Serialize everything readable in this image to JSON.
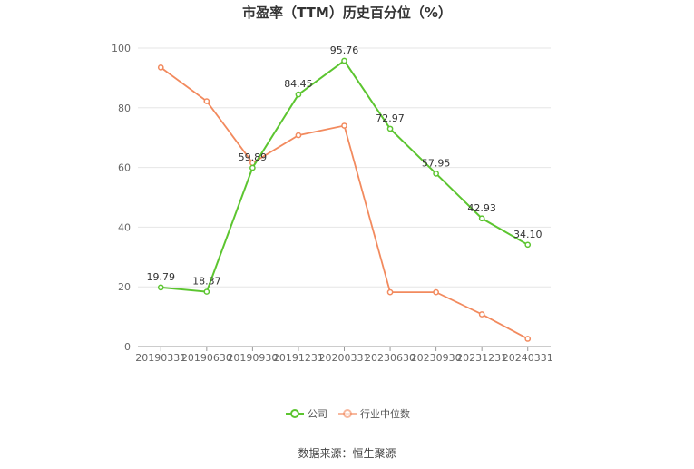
{
  "title": "市盈率（TTM）历史百分位（%）",
  "source": "数据来源：恒生聚源",
  "colors": {
    "company": "#5cc530",
    "industry": "#f28a5e",
    "grid": "#e6e6e6",
    "axis": "#999999"
  },
  "chart_data": {
    "type": "line",
    "categories": [
      "20190331",
      "20190630",
      "20190930",
      "20191231",
      "20200331",
      "20230630",
      "20230930",
      "20231231",
      "20240331"
    ],
    "ylim": [
      0,
      100
    ],
    "yticks": [
      0,
      20,
      40,
      60,
      80,
      100
    ],
    "grid": true,
    "legend": "bottom",
    "series": [
      {
        "name": "公司",
        "values": [
          19.79,
          18.37,
          59.89,
          84.45,
          95.76,
          72.97,
          57.95,
          42.93,
          34.1
        ],
        "labels": [
          "19.79",
          "18.37",
          "59.89",
          "84.45",
          "95.76",
          "72.97",
          "57.95",
          "42.93",
          "34.10"
        ]
      },
      {
        "name": "行业中位数",
        "values": [
          93.5,
          82.2,
          61.5,
          70.8,
          74.0,
          18.2,
          18.2,
          10.8,
          2.6
        ]
      }
    ]
  }
}
